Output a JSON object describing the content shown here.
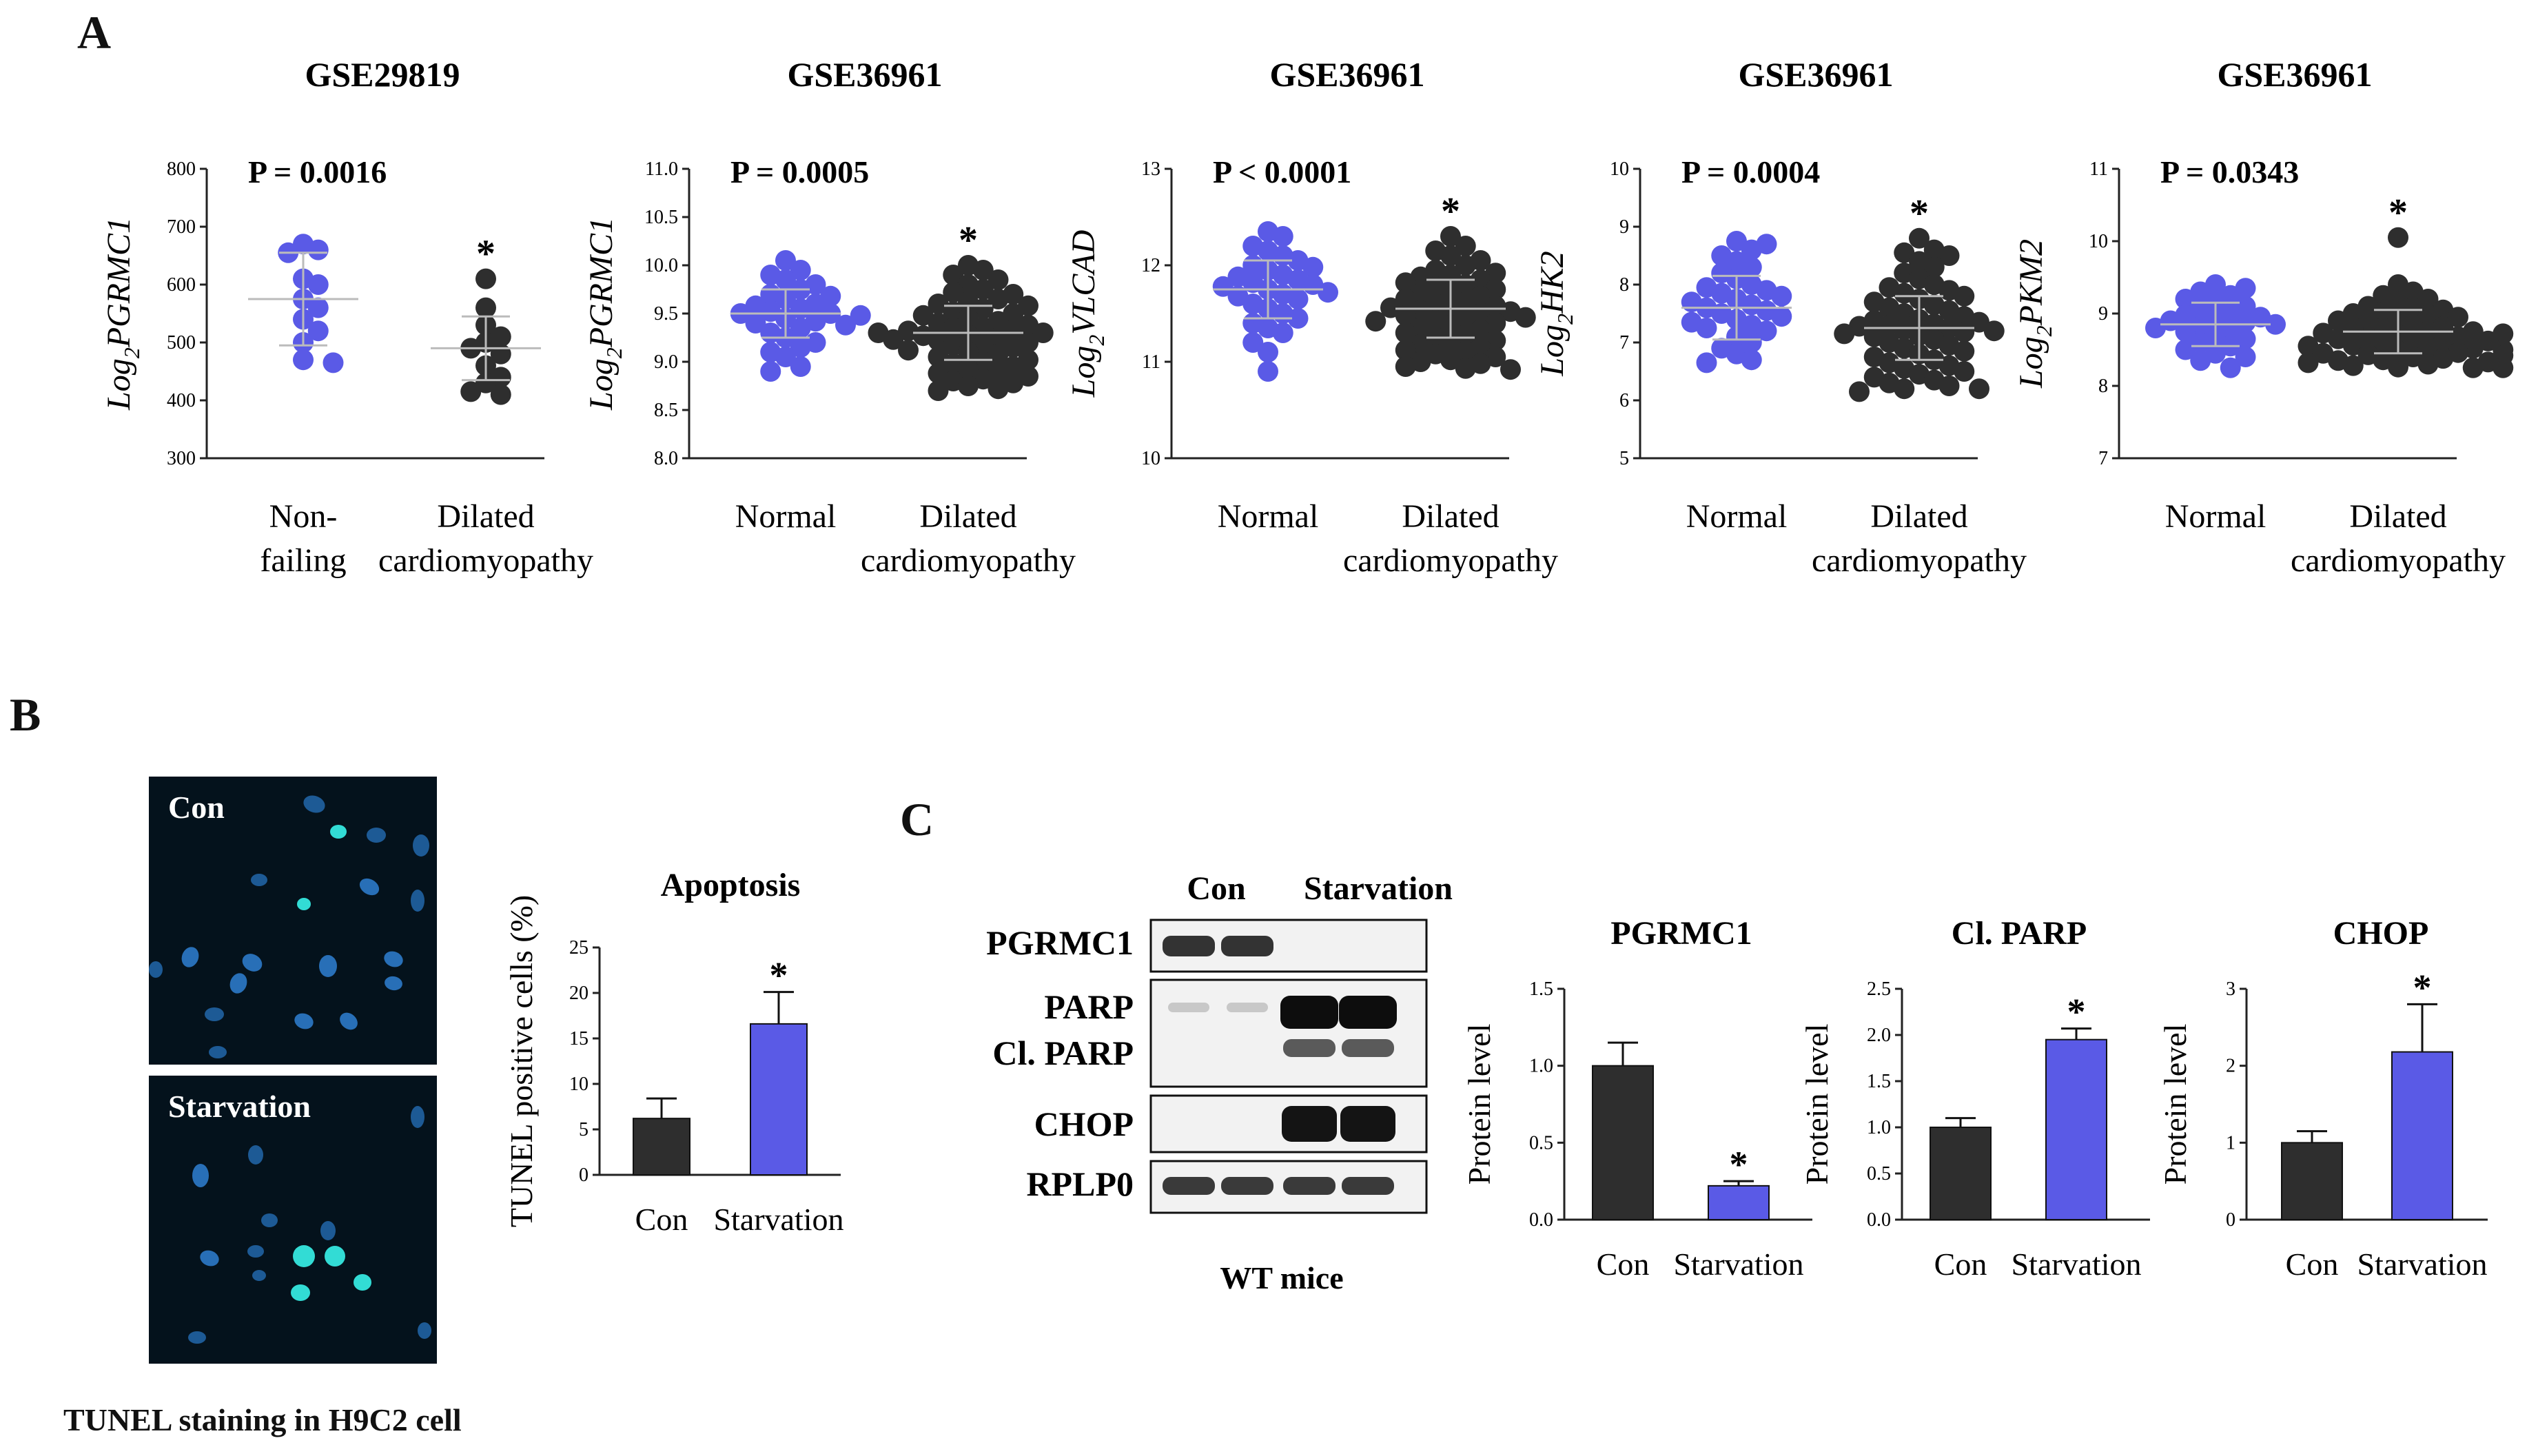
{
  "colors": {
    "blue": "#5a5ae6",
    "dark": "#2e2e2e",
    "axis": "#222222"
  },
  "panels": {
    "a": "A",
    "b": "B",
    "c": "C"
  },
  "tunel_images": {
    "con_label": "Con",
    "starvation_label": "Starvation",
    "caption": "TUNEL staining in H9C2 cell"
  },
  "blot": {
    "header_con": "Con",
    "header_starvation": "Starvation",
    "rows": [
      "PGRMC1",
      "PARP",
      "Cl. PARP",
      "CHOP",
      "RPLP0"
    ],
    "caption": "WT mice"
  },
  "chart_data": [
    {
      "type": "scatter",
      "title": "GSE29819",
      "ylabel": "Log2PGRMC1",
      "ylabel_main": "Log",
      "ylabel_sub": "2",
      "ylabel_gene": "PGRMC1",
      "pvalue": "P = 0.0016",
      "ylim": [
        300,
        800
      ],
      "yticks": [
        "300",
        "400",
        "500",
        "600",
        "700",
        "800"
      ],
      "groups": [
        {
          "label_lines": [
            "Non-",
            "failing"
          ],
          "mean": 575,
          "sd": 80,
          "values": [
            670,
            660,
            655,
            610,
            600,
            575,
            560,
            540,
            520,
            500,
            470,
            465
          ]
        },
        {
          "label_lines": [
            "Dilated",
            "cardiomyopathy"
          ],
          "mean": 490,
          "sd": 55,
          "values": [
            610,
            560,
            530,
            510,
            500,
            490,
            480,
            460,
            440,
            430,
            415,
            410
          ]
        }
      ],
      "significance": "*"
    },
    {
      "type": "scatter",
      "title": "GSE36961",
      "ylabel": "Log2PGRMC1",
      "ylabel_main": "Log",
      "ylabel_sub": "2",
      "ylabel_gene": "PGRMC1",
      "pvalue": "P = 0.0005",
      "ylim": [
        8.0,
        11.0
      ],
      "yticks": [
        "8.0",
        "8.5",
        "9.0",
        "9.5",
        "10.0",
        "10.5",
        "11.0"
      ],
      "groups": [
        {
          "label_lines": [
            "Normal"
          ],
          "mean": 9.5,
          "sd": 0.25,
          "values": [
            10.05,
            9.95,
            9.9,
            9.85,
            9.8,
            9.75,
            9.7,
            9.68,
            9.65,
            9.6,
            9.58,
            9.55,
            9.52,
            9.5,
            9.5,
            9.48,
            9.45,
            9.42,
            9.4,
            9.38,
            9.35,
            9.3,
            9.25,
            9.2,
            9.15,
            9.1,
            9.05,
            8.95,
            8.9
          ]
        },
        {
          "label_lines": [
            "Dilated",
            "cardiomyopathy"
          ],
          "mean": 9.3,
          "sd": 0.28,
          "values": [
            10.0,
            9.95,
            9.9,
            9.85,
            9.8,
            9.75,
            9.72,
            9.7,
            9.65,
            9.62,
            9.6,
            9.58,
            9.55,
            9.52,
            9.5,
            9.48,
            9.45,
            9.42,
            9.4,
            9.38,
            9.36,
            9.35,
            9.33,
            9.32,
            9.3,
            9.3,
            9.28,
            9.27,
            9.25,
            9.23,
            9.22,
            9.2,
            9.18,
            9.17,
            9.15,
            9.12,
            9.1,
            9.08,
            9.05,
            9.02,
            9.0,
            8.98,
            8.95,
            8.92,
            8.9,
            8.88,
            8.85,
            8.82,
            8.8,
            8.78,
            8.75,
            8.72,
            8.7
          ]
        }
      ],
      "significance": "*"
    },
    {
      "type": "scatter",
      "title": "GSE36961",
      "ylabel": "Log2VLCAD",
      "ylabel_main": "Log",
      "ylabel_sub": "2",
      "ylabel_gene": "VLCAD",
      "pvalue": "P < 0.0001",
      "ylim": [
        10,
        13
      ],
      "yticks": [
        "10",
        "11",
        "12",
        "13"
      ],
      "groups": [
        {
          "label_lines": [
            "Normal"
          ],
          "mean": 11.75,
          "sd": 0.3,
          "values": [
            12.35,
            12.3,
            12.2,
            12.15,
            12.1,
            12.05,
            12.0,
            11.98,
            11.95,
            11.9,
            11.88,
            11.85,
            11.82,
            11.8,
            11.78,
            11.75,
            11.72,
            11.7,
            11.68,
            11.65,
            11.6,
            11.55,
            11.5,
            11.45,
            11.4,
            11.35,
            11.3,
            11.2,
            11.1,
            10.9
          ]
        },
        {
          "label_lines": [
            "Dilated",
            "cardiomyopathy"
          ],
          "mean": 11.55,
          "sd": 0.3,
          "values": [
            12.3,
            12.2,
            12.15,
            12.1,
            12.05,
            12.0,
            11.95,
            11.92,
            11.9,
            11.88,
            11.85,
            11.82,
            11.8,
            11.78,
            11.75,
            11.72,
            11.7,
            11.68,
            11.65,
            11.62,
            11.6,
            11.58,
            11.56,
            11.55,
            11.53,
            11.52,
            11.5,
            11.48,
            11.46,
            11.45,
            11.43,
            11.42,
            11.4,
            11.38,
            11.35,
            11.33,
            11.3,
            11.28,
            11.25,
            11.22,
            11.2,
            11.18,
            11.15,
            11.12,
            11.1,
            11.08,
            11.05,
            11.02,
            11.0,
            10.98,
            10.95,
            10.93,
            10.92
          ]
        }
      ],
      "significance": "*"
    },
    {
      "type": "scatter",
      "title": "GSE36961",
      "ylabel": "Log2HK2",
      "ylabel_main": "Log",
      "ylabel_sub": "2",
      "ylabel_gene": "HK2",
      "pvalue": "P = 0.0004",
      "ylim": [
        5,
        10
      ],
      "yticks": [
        "5",
        "6",
        "7",
        "8",
        "9",
        "10"
      ],
      "groups": [
        {
          "label_lines": [
            "Normal"
          ],
          "mean": 7.6,
          "sd": 0.55,
          "values": [
            8.75,
            8.7,
            8.6,
            8.5,
            8.4,
            8.3,
            8.2,
            8.1,
            8.0,
            7.95,
            7.9,
            7.85,
            7.8,
            7.75,
            7.7,
            7.65,
            7.6,
            7.55,
            7.5,
            7.45,
            7.4,
            7.35,
            7.3,
            7.25,
            7.2,
            7.1,
            7.0,
            6.9,
            6.8,
            6.7,
            6.65
          ]
        },
        {
          "label_lines": [
            "Dilated",
            "cardiomyopathy"
          ],
          "mean": 7.25,
          "sd": 0.55,
          "values": [
            8.8,
            8.6,
            8.55,
            8.5,
            8.4,
            8.3,
            8.2,
            8.1,
            8.0,
            7.95,
            7.9,
            7.85,
            7.8,
            7.75,
            7.7,
            7.65,
            7.6,
            7.55,
            7.5,
            7.45,
            7.4,
            7.38,
            7.35,
            7.32,
            7.3,
            7.28,
            7.25,
            7.22,
            7.2,
            7.18,
            7.15,
            7.12,
            7.1,
            7.05,
            7.0,
            6.95,
            6.9,
            6.85,
            6.8,
            6.75,
            6.7,
            6.65,
            6.6,
            6.55,
            6.5,
            6.45,
            6.4,
            6.35,
            6.3,
            6.25,
            6.2,
            6.2,
            6.15
          ]
        }
      ],
      "significance": "*"
    },
    {
      "type": "scatter",
      "title": "GSE36961",
      "ylabel": "Log2PKM2",
      "ylabel_main": "Log",
      "ylabel_sub": "2",
      "ylabel_gene": "PKM2",
      "pvalue": "P = 0.0343",
      "ylim": [
        7,
        11
      ],
      "yticks": [
        "7",
        "8",
        "9",
        "10",
        "11"
      ],
      "groups": [
        {
          "label_lines": [
            "Normal"
          ],
          "mean": 8.85,
          "sd": 0.3,
          "values": [
            9.4,
            9.35,
            9.3,
            9.25,
            9.2,
            9.15,
            9.1,
            9.05,
            9.0,
            8.98,
            8.95,
            8.92,
            8.9,
            8.88,
            8.85,
            8.82,
            8.8,
            8.78,
            8.75,
            8.7,
            8.65,
            8.6,
            8.55,
            8.5,
            8.45,
            8.4,
            8.35,
            8.25
          ]
        },
        {
          "label_lines": [
            "Dilated",
            "cardiomyopathy"
          ],
          "mean": 8.75,
          "sd": 0.3,
          "values": [
            10.05,
            9.4,
            9.3,
            9.25,
            9.2,
            9.15,
            9.1,
            9.08,
            9.05,
            9.02,
            9.0,
            8.98,
            8.95,
            8.92,
            8.9,
            8.88,
            8.85,
            8.82,
            8.8,
            8.78,
            8.76,
            8.75,
            8.73,
            8.72,
            8.7,
            8.68,
            8.66,
            8.65,
            8.63,
            8.62,
            8.6,
            8.58,
            8.56,
            8.55,
            8.53,
            8.52,
            8.5,
            8.48,
            8.46,
            8.45,
            8.43,
            8.42,
            8.4,
            8.38,
            8.36,
            8.35,
            8.33,
            8.32,
            8.3,
            8.28,
            8.26,
            8.25,
            8.25
          ]
        }
      ],
      "significance": "*"
    },
    {
      "type": "bar",
      "title": "Apoptosis",
      "ylabel": "TUNEL positive cells (%)",
      "categories": [
        "Con",
        "Starvation"
      ],
      "values": [
        6.2,
        16.6
      ],
      "errors": [
        2.2,
        3.5
      ],
      "ylim": [
        0,
        25
      ],
      "yticks": [
        "0",
        "5",
        "10",
        "15",
        "20",
        "25"
      ],
      "significance": "*"
    },
    {
      "type": "bar",
      "title": "PGRMC1",
      "ylabel": "Protein level",
      "categories": [
        "Con",
        "Starvation"
      ],
      "values": [
        1.0,
        0.22
      ],
      "errors": [
        0.15,
        0.03
      ],
      "ylim": [
        0,
        1.5
      ],
      "yticks": [
        "0.0",
        "0.5",
        "1.0",
        "1.5"
      ],
      "significance": "*"
    },
    {
      "type": "bar",
      "title": "Cl. PARP",
      "ylabel": "Protein level",
      "categories": [
        "Con",
        "Starvation"
      ],
      "values": [
        1.0,
        1.95
      ],
      "errors": [
        0.1,
        0.12
      ],
      "ylim": [
        0,
        2.5
      ],
      "yticks": [
        "0.0",
        "0.5",
        "1.0",
        "1.5",
        "2.0",
        "2.5"
      ],
      "significance": "*"
    },
    {
      "type": "bar",
      "title": "CHOP",
      "ylabel": "Protein level",
      "categories": [
        "Con",
        "Starvation"
      ],
      "values": [
        1.0,
        2.18
      ],
      "errors": [
        0.15,
        0.62
      ],
      "ylim": [
        0,
        3
      ],
      "yticks": [
        "0",
        "1",
        "2",
        "3"
      ],
      "significance": "*"
    }
  ]
}
